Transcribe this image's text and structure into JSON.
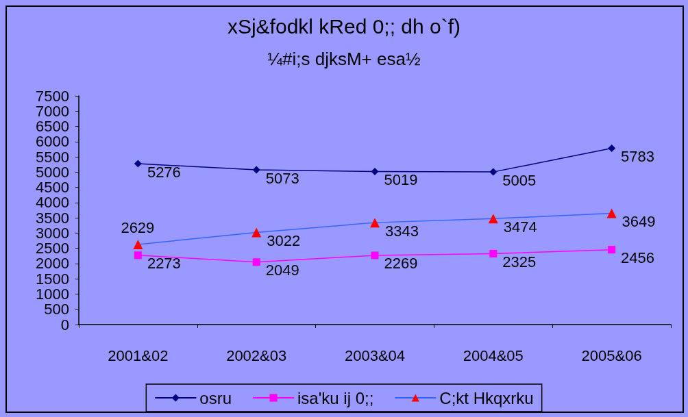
{
  "chart_data": {
    "type": "line",
    "title": "xSj&fodkl kRed 0;; dh o`f)",
    "subtitle": "¼#i;s djksM+ esa½",
    "categories": [
      "2001&02",
      "2002&03",
      "2003&04",
      "2004&05",
      "2005&06"
    ],
    "series": [
      {
        "name": "osru",
        "color": "#000080",
        "marker": "diamond",
        "values": [
          5276,
          5073,
          5019,
          5005,
          5783
        ]
      },
      {
        "name": "isa'ku ij 0;;",
        "color": "#ff00ff",
        "marker": "square",
        "values": [
          2273,
          2049,
          2269,
          2325,
          2456
        ]
      },
      {
        "name": "C;kt Hkqxrku",
        "color": "#3366ff",
        "marker": "triangle",
        "values": [
          2629,
          3022,
          3343,
          3474,
          3649
        ]
      }
    ],
    "ylim": [
      0,
      7500
    ],
    "yticks": [
      0,
      500,
      1000,
      1500,
      2000,
      2500,
      3000,
      3500,
      4000,
      4500,
      5000,
      5500,
      6000,
      6500,
      7000,
      7500
    ],
    "grid": false,
    "legend": "bottom",
    "data_labels": true
  }
}
